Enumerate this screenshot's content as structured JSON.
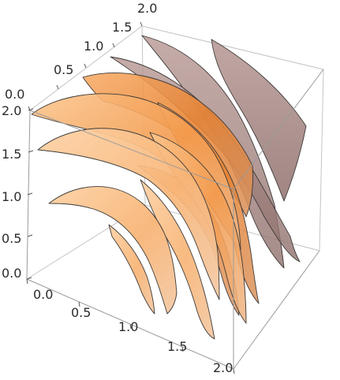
{
  "plot": {
    "type": "3d-surface",
    "axes": {
      "left": {
        "ticks": [
          "0.0",
          "0.5",
          "1.0",
          "1.5",
          "2.0"
        ]
      },
      "bottom": {
        "ticks": [
          "0.0",
          "0.5",
          "1.0",
          "1.5",
          "2.0"
        ]
      },
      "top": {
        "ticks": [
          "0.0",
          "0.5",
          "1.0",
          "1.5",
          "2.0"
        ]
      }
    },
    "colors": {
      "surface_light": "#fcc999",
      "surface_mid": "#f4a35a",
      "surface_dark": "#e07a2a",
      "surface_back": "#a88a86",
      "edge": "#3e3a38",
      "box": "#c4c4c4"
    }
  }
}
